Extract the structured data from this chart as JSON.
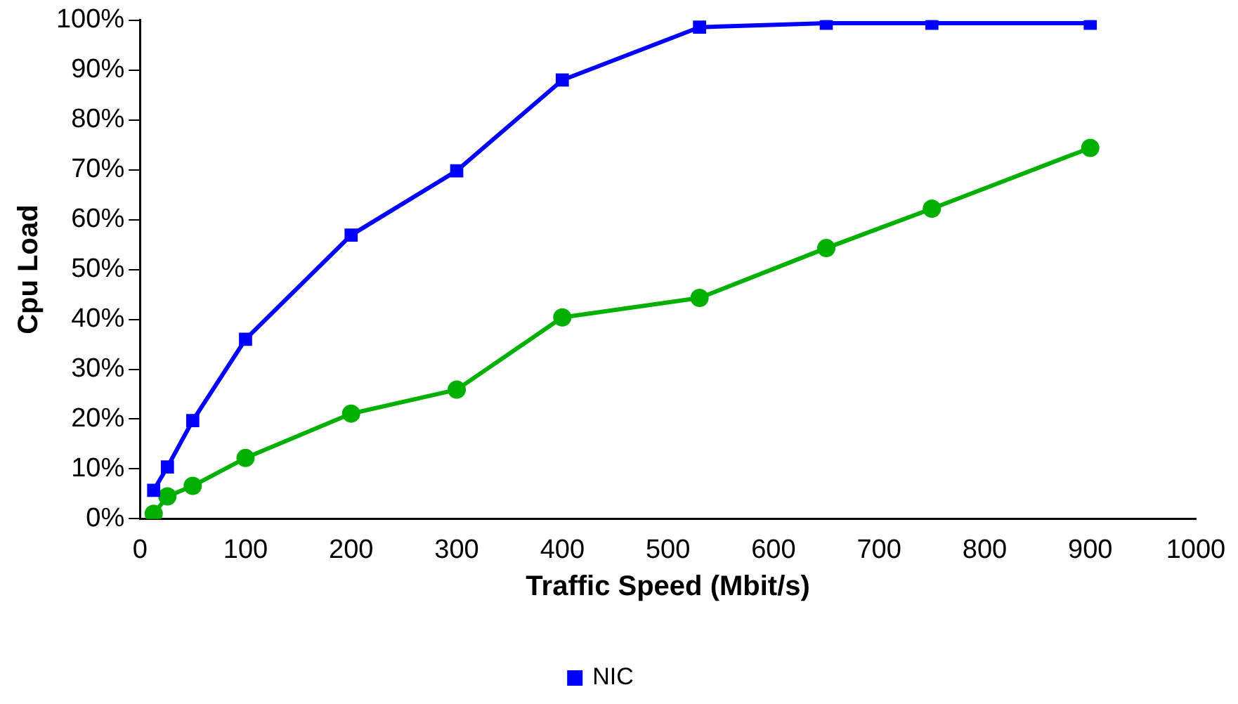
{
  "chart_data": {
    "type": "line",
    "xlabel": "Traffic Speed (Mbit/s)",
    "ylabel": "Cpu Load",
    "xlim": [
      0,
      1000
    ],
    "xticks": [
      0,
      100,
      200,
      300,
      400,
      500,
      600,
      700,
      800,
      900,
      1000
    ],
    "ylim": [
      0,
      100
    ],
    "yticks": [
      {
        "value": 0,
        "label": "0%"
      },
      {
        "value": 10,
        "label": "10%"
      },
      {
        "value": 20,
        "label": "20%"
      },
      {
        "value": 30,
        "label": "30%"
      },
      {
        "value": 40,
        "label": "40%"
      },
      {
        "value": 50,
        "label": "50%"
      },
      {
        "value": 60,
        "label": "60%"
      },
      {
        "value": 70,
        "label": "70%"
      },
      {
        "value": 80,
        "label": "80%"
      },
      {
        "value": 90,
        "label": "90%"
      },
      {
        "value": 100,
        "label": "100%"
      }
    ],
    "grid": false,
    "legend": "bottom",
    "x": [
      13,
      26,
      50,
      100,
      200,
      300,
      400,
      530,
      650,
      750,
      900
    ],
    "series": [
      {
        "name": "NIC",
        "color": "#0000ff",
        "marker": "square",
        "values": [
          5.7,
          10.4,
          19.7,
          36,
          56.9,
          69.8,
          88,
          98.6,
          99.4,
          99.4,
          99.4
        ]
      },
      {
        "color": "#00b000",
        "marker": "circle",
        "values": [
          1,
          4.5,
          6.6,
          12.2,
          21.1,
          25.9,
          40.4,
          44.3,
          54.3,
          62.2,
          74.4
        ]
      }
    ]
  }
}
